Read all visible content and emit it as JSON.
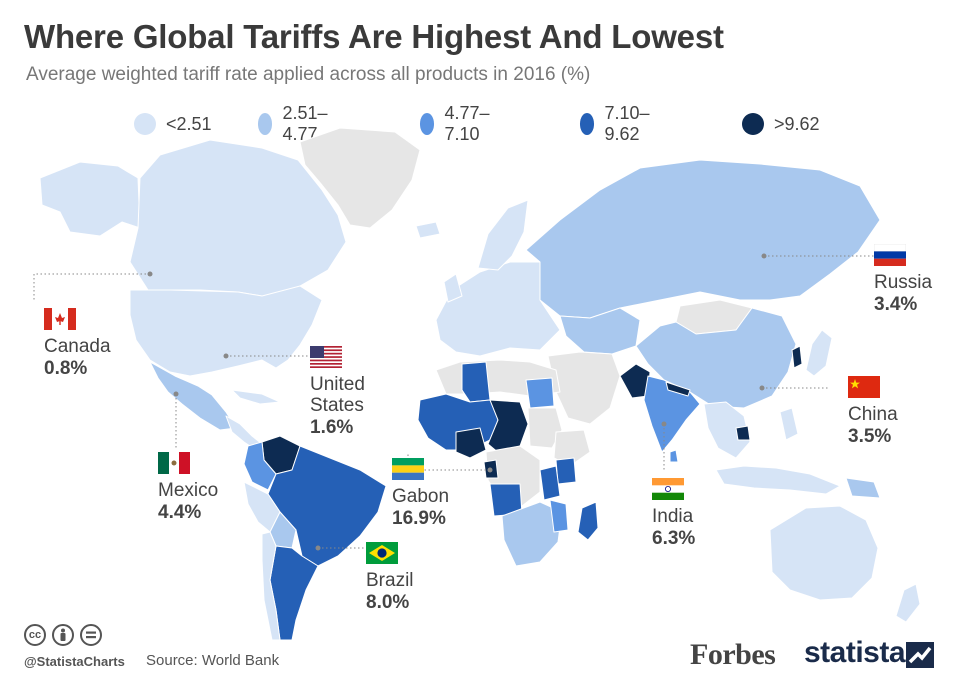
{
  "title": "Where Global Tariffs Are Highest And Lowest",
  "subtitle": "Average weighted tariff rate applied across all products in 2016 (%)",
  "legend": [
    {
      "label": "<2.51",
      "color": "#d6e4f6"
    },
    {
      "label": "2.51–4.77",
      "color": "#a9c8ee"
    },
    {
      "label": "4.77–7.10",
      "color": "#5b94e2"
    },
    {
      "label": "7.10–9.62",
      "color": "#2560b6"
    },
    {
      "label": ">9.62",
      "color": "#0d2b52"
    }
  ],
  "no_data_color": "#e6e6e6",
  "countries": [
    {
      "name": "Canada",
      "value": "0.8%",
      "flag": "canada-flag-icon"
    },
    {
      "name": "United\nStates",
      "value": "1.6%",
      "flag": "usa-flag-icon"
    },
    {
      "name": "Mexico",
      "value": "4.4%",
      "flag": "mexico-flag-icon"
    },
    {
      "name": "Gabon",
      "value": "16.9%",
      "flag": "gabon-flag-icon"
    },
    {
      "name": "Brazil",
      "value": "8.0%",
      "flag": "brazil-flag-icon"
    },
    {
      "name": "India",
      "value": "6.3%",
      "flag": "india-flag-icon"
    },
    {
      "name": "Russia",
      "value": "3.4%",
      "flag": "russia-flag-icon"
    },
    {
      "name": "China",
      "value": "3.5%",
      "flag": "china-flag-icon"
    }
  ],
  "footer": {
    "handle": "@StatistaCharts",
    "source": "Source: World Bank",
    "partner": "Forbes",
    "brand": "statista"
  }
}
